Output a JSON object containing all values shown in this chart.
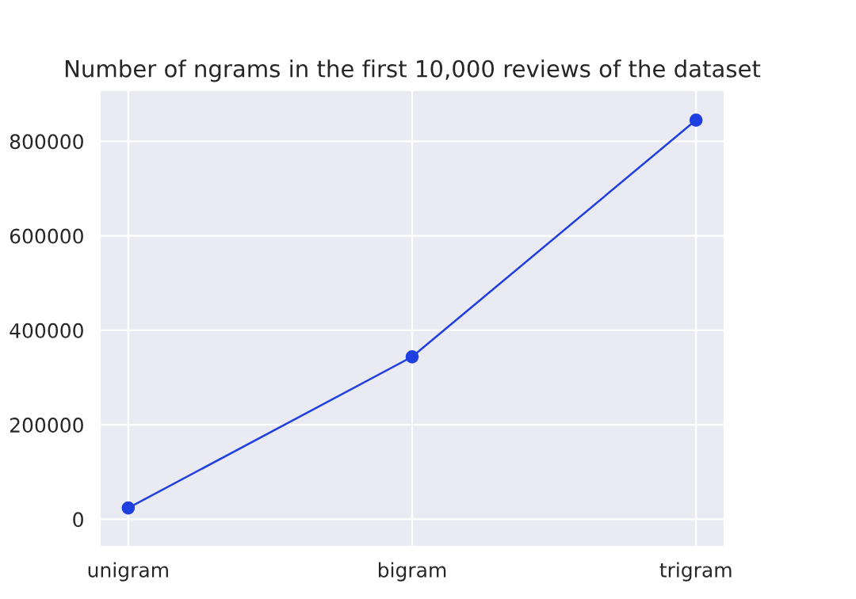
{
  "chart_data": {
    "type": "line",
    "title": "Number of ngrams in the first 10,000 reviews of the dataset",
    "categories": [
      "unigram",
      "bigram",
      "trigram"
    ],
    "series": [
      {
        "color": "#1f3fe0",
        "values": [
          24000,
          344000,
          845000
        ]
      }
    ],
    "ylim": [
      -58000,
      908000
    ],
    "yticks": [
      0,
      200000,
      400000,
      600000,
      800000
    ],
    "grid": true,
    "marker": "circle",
    "line_style": "solid"
  }
}
